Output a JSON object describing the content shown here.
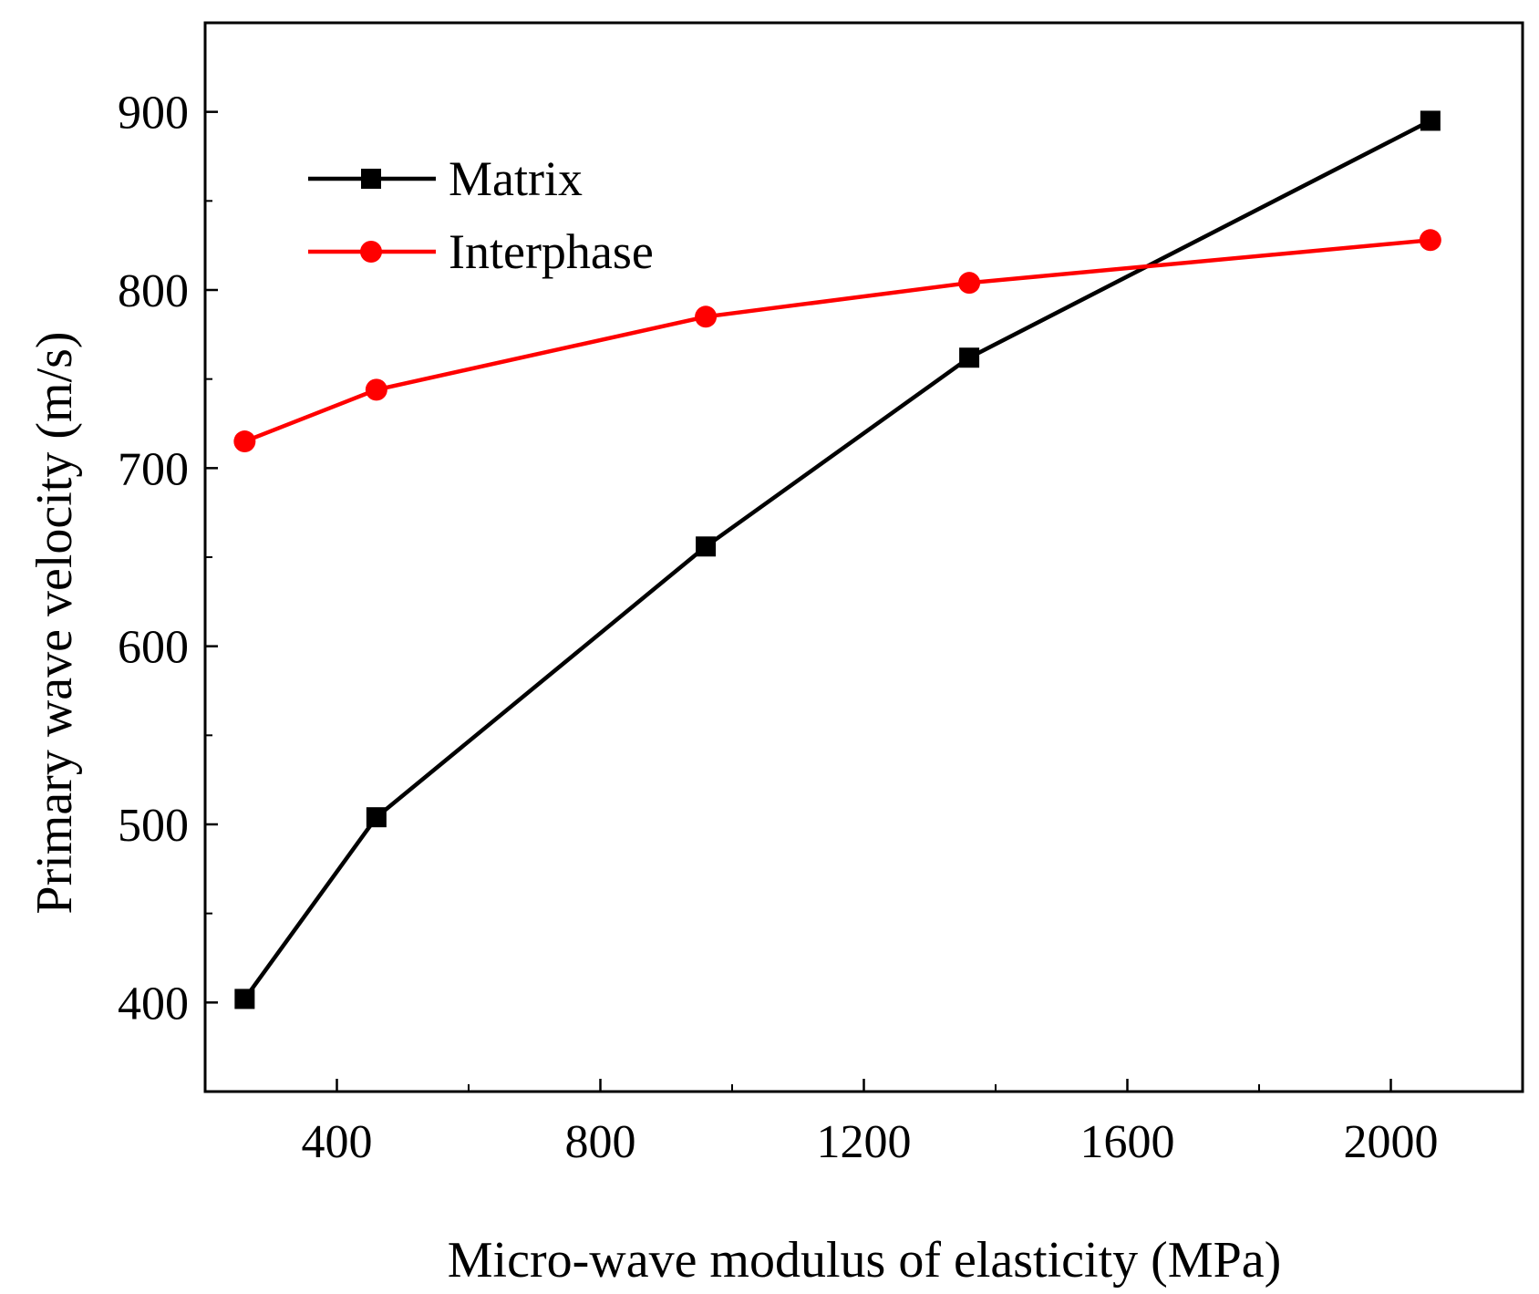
{
  "chart_data": {
    "type": "line",
    "xlabel": "Micro-wave modulus of elasticity (MPa)",
    "ylabel": "Primary wave velocity (m/s)",
    "xlim": [
      200,
      2200
    ],
    "ylim": [
      350,
      950
    ],
    "xticks": [
      400,
      800,
      1200,
      1600,
      2000
    ],
    "yticks": [
      400,
      500,
      600,
      700,
      800,
      900
    ],
    "xtick_labels": [
      "400",
      "800",
      "1200",
      "1600",
      "2000"
    ],
    "ytick_labels": [
      "400",
      "500",
      "600",
      "700",
      "800",
      "900"
    ],
    "grid": false,
    "legend_position": "upper-left",
    "series": [
      {
        "name": "Matrix",
        "color": "#000000",
        "marker": "square",
        "x": [
          260,
          460,
          960,
          1360,
          2060
        ],
        "y": [
          402,
          504,
          656,
          762,
          895
        ]
      },
      {
        "name": "Interphase",
        "color": "#ff0000",
        "marker": "circle",
        "x": [
          260,
          460,
          960,
          1360,
          2060
        ],
        "y": [
          715,
          744,
          785,
          804,
          828
        ]
      }
    ]
  }
}
